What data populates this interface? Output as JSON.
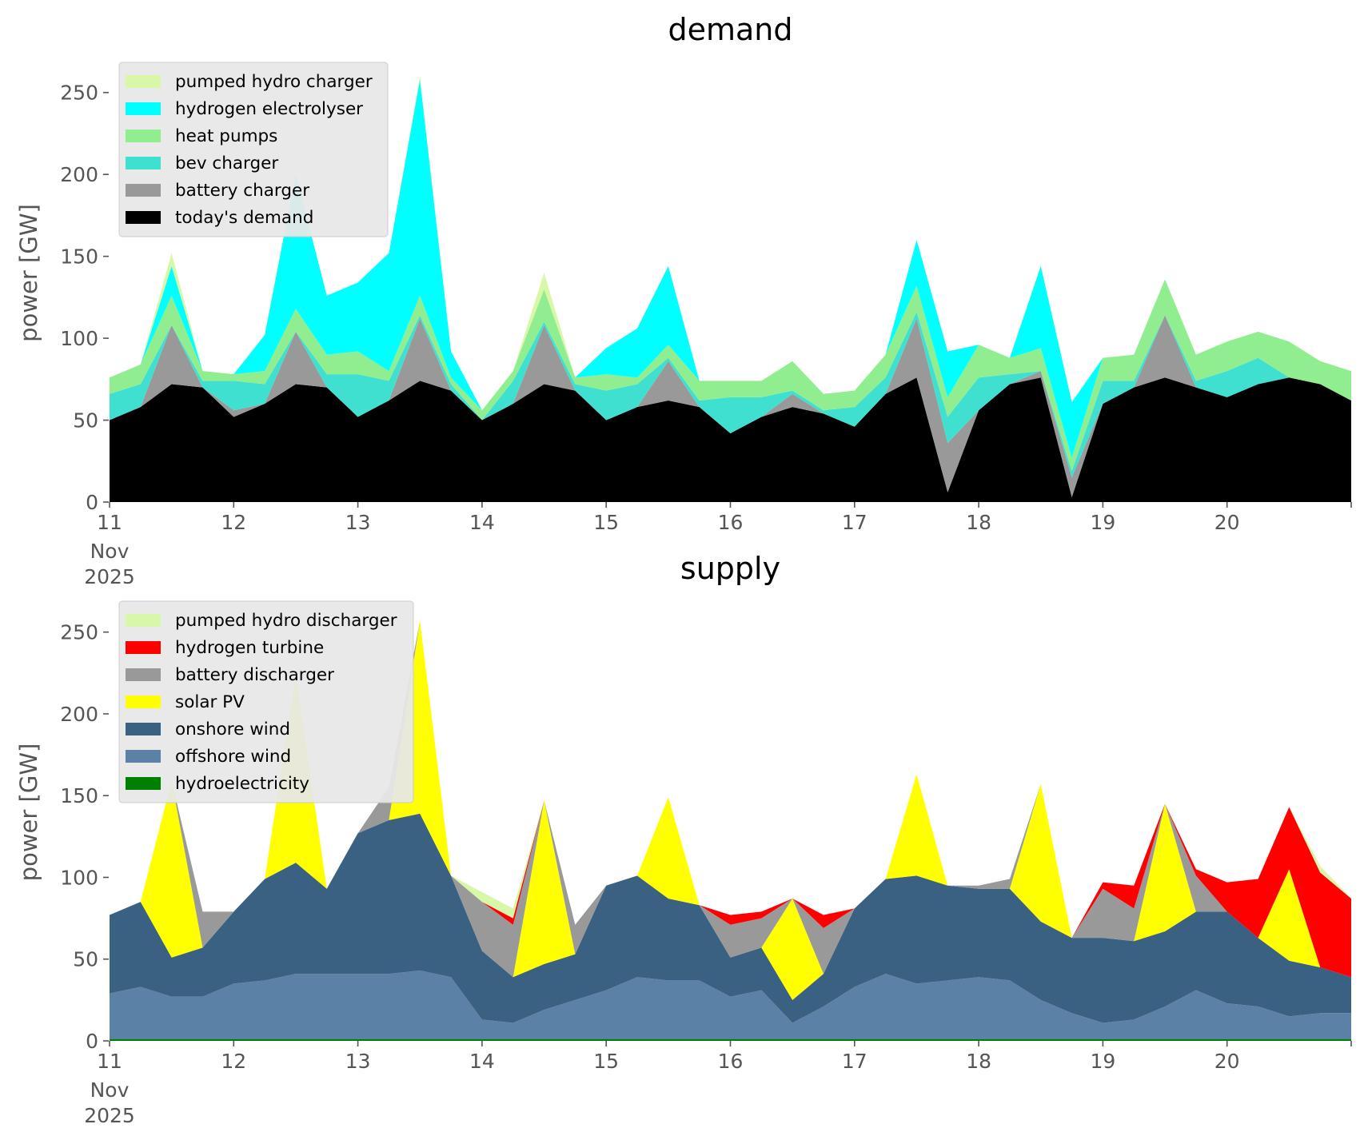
{
  "chart_data": [
    {
      "type": "area",
      "title": "demand",
      "ylabel": "power [GW]",
      "ylim": [
        0,
        265
      ],
      "yticks": [
        0,
        50,
        100,
        150,
        200,
        250
      ],
      "xlim": [
        "2025-11-11",
        "2025-11-21"
      ],
      "xticks": [
        {
          "date": "2025-11-11",
          "label": "11",
          "sub": [
            "Nov",
            "2025"
          ]
        },
        {
          "date": "2025-11-12",
          "label": "12"
        },
        {
          "date": "2025-11-13",
          "label": "13"
        },
        {
          "date": "2025-11-14",
          "label": "14"
        },
        {
          "date": "2025-11-15",
          "label": "15"
        },
        {
          "date": "2025-11-16",
          "label": "16"
        },
        {
          "date": "2025-11-17",
          "label": "17"
        },
        {
          "date": "2025-11-18",
          "label": "18"
        },
        {
          "date": "2025-11-19",
          "label": "19"
        },
        {
          "date": "2025-11-20",
          "label": "20"
        }
      ],
      "stacked": true,
      "legend_position": "upper-left",
      "x": [
        "2025-11-11 00:00",
        "2025-11-11 06:00",
        "2025-11-11 12:00",
        "2025-11-11 18:00",
        "2025-11-12 00:00",
        "2025-11-12 06:00",
        "2025-11-12 12:00",
        "2025-11-12 18:00",
        "2025-11-13 00:00",
        "2025-11-13 06:00",
        "2025-11-13 12:00",
        "2025-11-13 18:00",
        "2025-11-14 00:00",
        "2025-11-14 06:00",
        "2025-11-14 12:00",
        "2025-11-14 18:00",
        "2025-11-15 00:00",
        "2025-11-15 06:00",
        "2025-11-15 12:00",
        "2025-11-15 18:00",
        "2025-11-16 00:00",
        "2025-11-16 06:00",
        "2025-11-16 12:00",
        "2025-11-16 18:00",
        "2025-11-17 00:00",
        "2025-11-17 06:00",
        "2025-11-17 12:00",
        "2025-11-17 18:00",
        "2025-11-18 00:00",
        "2025-11-18 06:00",
        "2025-11-18 12:00",
        "2025-11-18 18:00",
        "2025-11-19 00:00",
        "2025-11-19 06:00",
        "2025-11-19 12:00",
        "2025-11-19 18:00",
        "2025-11-20 00:00",
        "2025-11-20 06:00",
        "2025-11-20 12:00",
        "2025-11-20 18:00",
        "2025-11-21 00:00"
      ],
      "series": [
        {
          "name": "today's demand",
          "color": "#000000",
          "values": [
            50,
            58,
            72,
            70,
            52,
            60,
            72,
            70,
            52,
            62,
            74,
            68,
            50,
            60,
            72,
            68,
            50,
            58,
            62,
            58,
            42,
            52,
            58,
            54,
            46,
            66,
            76,
            6,
            56,
            72,
            76,
            3,
            60,
            70,
            76,
            70,
            64,
            72,
            76,
            72,
            62
          ]
        },
        {
          "name": "battery charger",
          "color": "#999999",
          "values": [
            0,
            0,
            36,
            0,
            4,
            0,
            32,
            0,
            0,
            0,
            38,
            0,
            0,
            0,
            36,
            0,
            0,
            0,
            24,
            0,
            0,
            0,
            8,
            0,
            0,
            0,
            36,
            30,
            0,
            0,
            4,
            12,
            0,
            0,
            38,
            0,
            0,
            0,
            0,
            0,
            0
          ]
        },
        {
          "name": "bev charger",
          "color": "#40e0d0",
          "values": [
            16,
            14,
            0,
            4,
            18,
            12,
            0,
            8,
            26,
            12,
            2,
            4,
            0,
            14,
            2,
            4,
            18,
            14,
            2,
            4,
            22,
            12,
            2,
            2,
            12,
            10,
            4,
            16,
            20,
            6,
            0,
            4,
            14,
            4,
            0,
            4,
            16,
            16,
            0,
            0,
            0
          ]
        },
        {
          "name": "heat pumps",
          "color": "#90ee90",
          "values": [
            10,
            12,
            18,
            6,
            4,
            8,
            14,
            12,
            14,
            6,
            12,
            4,
            6,
            6,
            20,
            4,
            10,
            4,
            8,
            12,
            10,
            10,
            18,
            10,
            10,
            14,
            16,
            12,
            20,
            10,
            14,
            8,
            14,
            16,
            22,
            16,
            18,
            16,
            22,
            14,
            18
          ]
        },
        {
          "name": "hydrogen electrolyser",
          "color": "#00ffff",
          "values": [
            0,
            0,
            18,
            0,
            0,
            22,
            82,
            36,
            42,
            72,
            132,
            16,
            0,
            0,
            0,
            0,
            16,
            30,
            48,
            0,
            0,
            0,
            0,
            0,
            0,
            0,
            28,
            28,
            0,
            0,
            50,
            34,
            0,
            0,
            0,
            0,
            0,
            0,
            0,
            0,
            0
          ]
        },
        {
          "name": "pumped hydro charger",
          "color": "#d9f7a8",
          "values": [
            0,
            0,
            8,
            0,
            0,
            0,
            0,
            0,
            0,
            0,
            2,
            0,
            0,
            0,
            10,
            0,
            0,
            0,
            0,
            0,
            0,
            0,
            0,
            0,
            0,
            0,
            0,
            0,
            0,
            0,
            0,
            0,
            0,
            0,
            0,
            0,
            0,
            0,
            0,
            0,
            0
          ]
        }
      ]
    },
    {
      "type": "area",
      "title": "supply",
      "ylabel": "power [GW]",
      "ylim": [
        0,
        265
      ],
      "yticks": [
        0,
        50,
        100,
        150,
        200,
        250
      ],
      "xlim": [
        "2025-11-11",
        "2025-11-21"
      ],
      "xticks": [
        {
          "date": "2025-11-11",
          "label": "11",
          "sub": [
            "Nov",
            "2025"
          ]
        },
        {
          "date": "2025-11-12",
          "label": "12"
        },
        {
          "date": "2025-11-13",
          "label": "13"
        },
        {
          "date": "2025-11-14",
          "label": "14"
        },
        {
          "date": "2025-11-15",
          "label": "15"
        },
        {
          "date": "2025-11-16",
          "label": "16"
        },
        {
          "date": "2025-11-17",
          "label": "17"
        },
        {
          "date": "2025-11-18",
          "label": "18"
        },
        {
          "date": "2025-11-19",
          "label": "19"
        },
        {
          "date": "2025-11-20",
          "label": "20"
        }
      ],
      "stacked": true,
      "legend_position": "upper-left",
      "x": [
        "2025-11-11 00:00",
        "2025-11-11 06:00",
        "2025-11-11 12:00",
        "2025-11-11 18:00",
        "2025-11-12 00:00",
        "2025-11-12 06:00",
        "2025-11-12 12:00",
        "2025-11-12 18:00",
        "2025-11-13 00:00",
        "2025-11-13 06:00",
        "2025-11-13 12:00",
        "2025-11-13 18:00",
        "2025-11-14 00:00",
        "2025-11-14 06:00",
        "2025-11-14 12:00",
        "2025-11-14 18:00",
        "2025-11-15 00:00",
        "2025-11-15 06:00",
        "2025-11-15 12:00",
        "2025-11-15 18:00",
        "2025-11-16 00:00",
        "2025-11-16 06:00",
        "2025-11-16 12:00",
        "2025-11-16 18:00",
        "2025-11-17 00:00",
        "2025-11-17 06:00",
        "2025-11-17 12:00",
        "2025-11-17 18:00",
        "2025-11-18 00:00",
        "2025-11-18 06:00",
        "2025-11-18 12:00",
        "2025-11-18 18:00",
        "2025-11-19 00:00",
        "2025-11-19 06:00",
        "2025-11-19 12:00",
        "2025-11-19 18:00",
        "2025-11-20 00:00",
        "2025-11-20 06:00",
        "2025-11-20 12:00",
        "2025-11-20 18:00",
        "2025-11-21 00:00"
      ],
      "series": [
        {
          "name": "hydroelectricity",
          "color": "#008000",
          "values": [
            1,
            1,
            1,
            1,
            1,
            1,
            1,
            1,
            1,
            1,
            1,
            1,
            1,
            1,
            1,
            1,
            1,
            1,
            1,
            1,
            1,
            1,
            1,
            1,
            1,
            1,
            1,
            1,
            1,
            1,
            1,
            1,
            1,
            1,
            1,
            1,
            1,
            1,
            1,
            1,
            1
          ]
        },
        {
          "name": "offshore wind",
          "color": "#5b82a6",
          "values": [
            28,
            32,
            26,
            26,
            34,
            36,
            40,
            40,
            40,
            40,
            42,
            38,
            12,
            10,
            18,
            24,
            30,
            38,
            36,
            36,
            26,
            30,
            10,
            20,
            32,
            40,
            34,
            36,
            38,
            36,
            24,
            16,
            10,
            12,
            20,
            30,
            22,
            20,
            14,
            16,
            16
          ]
        },
        {
          "name": "onshore wind",
          "color": "#3b6182",
          "values": [
            48,
            52,
            24,
            30,
            44,
            62,
            68,
            52,
            86,
            94,
            96,
            62,
            42,
            28,
            28,
            28,
            64,
            62,
            50,
            46,
            24,
            26,
            14,
            20,
            48,
            58,
            66,
            58,
            54,
            56,
            48,
            46,
            52,
            48,
            46,
            48,
            56,
            42,
            34,
            28,
            22
          ]
        },
        {
          "name": "solar PV",
          "color": "#ffff00",
          "values": [
            0,
            0,
            108,
            0,
            0,
            0,
            115,
            0,
            0,
            0,
            118,
            0,
            0,
            0,
            100,
            0,
            0,
            0,
            62,
            0,
            0,
            0,
            62,
            0,
            0,
            0,
            62,
            0,
            0,
            0,
            84,
            0,
            0,
            0,
            78,
            0,
            0,
            0,
            56,
            0,
            0
          ]
        },
        {
          "name": "battery discharger",
          "color": "#999999",
          "values": [
            0,
            0,
            0,
            22,
            0,
            0,
            0,
            0,
            0,
            20,
            0,
            0,
            30,
            32,
            0,
            18,
            0,
            0,
            0,
            0,
            20,
            18,
            0,
            28,
            0,
            0,
            0,
            0,
            2,
            6,
            0,
            0,
            30,
            20,
            0,
            22,
            0,
            0,
            0,
            0,
            0
          ]
        },
        {
          "name": "hydrogen turbine",
          "color": "#ff0000",
          "values": [
            0,
            0,
            0,
            0,
            0,
            0,
            0,
            0,
            0,
            0,
            0,
            0,
            0,
            4,
            0,
            0,
            0,
            0,
            0,
            0,
            6,
            4,
            0,
            8,
            0,
            0,
            0,
            0,
            0,
            0,
            0,
            0,
            4,
            14,
            0,
            4,
            18,
            36,
            38,
            58,
            48
          ]
        },
        {
          "name": "pumped hydro discharger",
          "color": "#d9f7a8",
          "values": [
            0,
            0,
            0,
            0,
            0,
            0,
            0,
            0,
            0,
            0,
            0,
            0,
            6,
            6,
            0,
            0,
            0,
            0,
            0,
            0,
            0,
            0,
            0,
            0,
            0,
            0,
            0,
            0,
            0,
            0,
            0,
            0,
            0,
            0,
            0,
            0,
            0,
            0,
            0,
            4,
            0
          ]
        }
      ]
    }
  ]
}
